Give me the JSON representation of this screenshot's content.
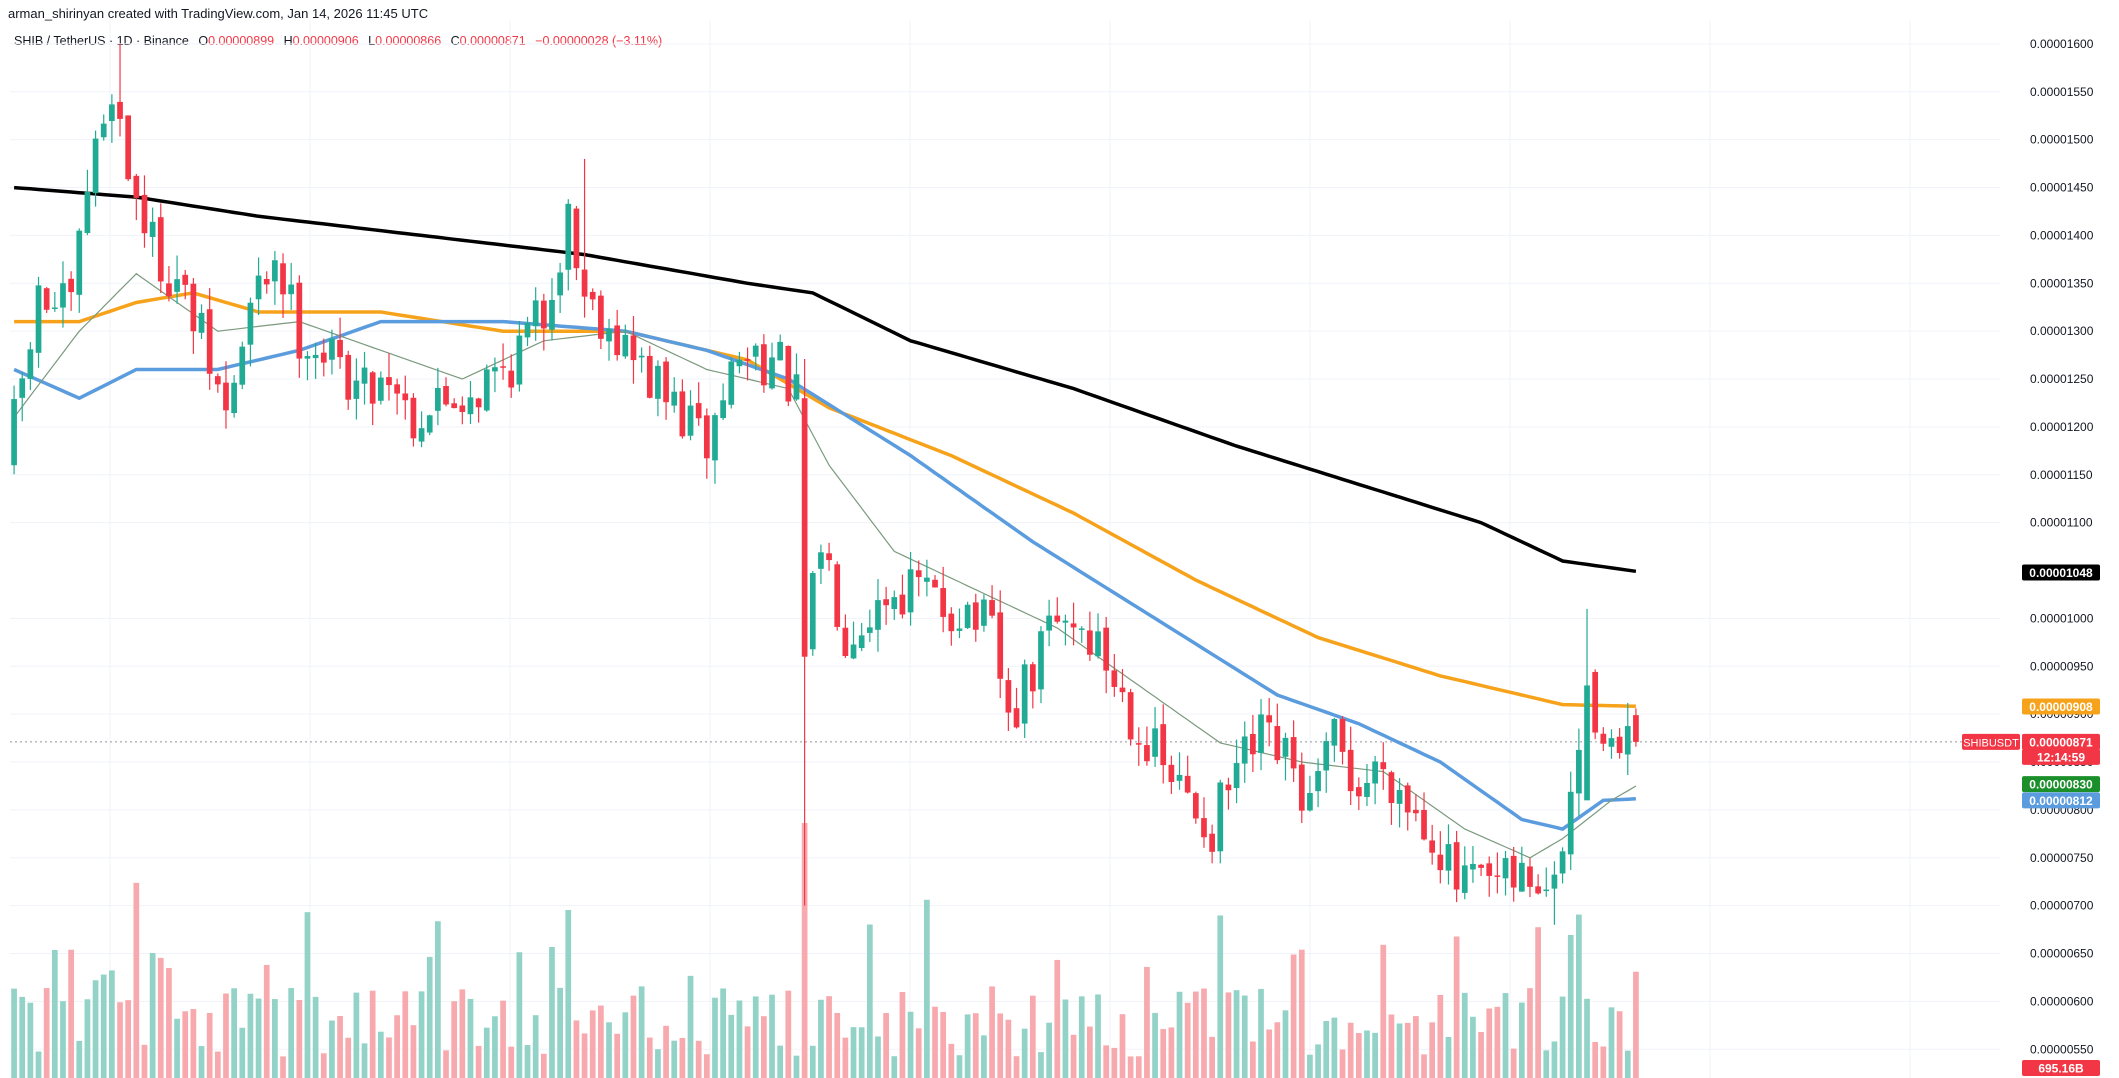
{
  "header": {
    "credit": "arman_shirinyan created with TradingView.com, Jan 14, 2026 11:45 UTC",
    "symbol_line": "SHIB / TetherUS · 1D · Binance",
    "open_label": "O",
    "open": "0.00000899",
    "high_label": "H",
    "high": "0.00000906",
    "low_label": "L",
    "low": "0.00000866",
    "close_label": "C",
    "close": "0.00000871",
    "change": "−0.00000028 (−3.11%)"
  },
  "colors": {
    "up": "#22ab94",
    "down": "#f23645",
    "vol_up": "#92d2c7",
    "vol_down": "#f7a9ae",
    "ma200": "#000000",
    "ma100": "#f7a21b",
    "ma50": "#5b9cde",
    "ma20": "#7b9a7e"
  },
  "price_labels": {
    "ma200": "0.00001048",
    "ma100": "0.00000908",
    "ticker": "SHIBUSDT",
    "last": "0.00000871",
    "countdown": "12:14:59",
    "ma20": "0.00000830",
    "ma50": "0.00000812",
    "volume": "695.16B"
  },
  "chart_data": {
    "type": "candlestick",
    "title": "SHIB / TetherUS · 1D · Binance",
    "y_axis": {
      "position": "right",
      "ylim": [
        5.2e-06,
        1.625e-05
      ],
      "ticks": [
        "0.00001600",
        "0.00001550",
        "0.00001500",
        "0.00001450",
        "0.00001400",
        "0.00001350",
        "0.00001300",
        "0.00001250",
        "0.00001200",
        "0.00001150",
        "0.00001100",
        "0.00001000",
        "0.00000950",
        "0.00000900",
        "0.00000850",
        "0.00000800",
        "0.00000750",
        "0.00000700",
        "0.00000650",
        "0.00000600",
        "0.00000550"
      ]
    },
    "grid": true,
    "candles_approx": 200,
    "key_points": [
      {
        "label": "start",
        "close": 1.16e-05
      },
      {
        "label": "early high",
        "high": 1.6e-05
      },
      {
        "label": "mid spike high",
        "high": 1.48e-05
      },
      {
        "label": "crash wick low",
        "low": 7e-06
      },
      {
        "label": "low",
        "low": 6.8e-06
      },
      {
        "label": "recent spike high",
        "high": 1.01e-05
      },
      {
        "label": "last",
        "open": 8.99e-06,
        "high": 9.06e-06,
        "low": 8.66e-06,
        "close": 8.71e-06
      }
    ],
    "close_path": [
      [
        0,
        1.16e-05
      ],
      [
        4,
        1.33e-05
      ],
      [
        8,
        1.32e-05
      ],
      [
        10,
        1.45e-05
      ],
      [
        13,
        1.56e-05
      ],
      [
        15,
        1.47e-05
      ],
      [
        18,
        1.39e-05
      ],
      [
        21,
        1.35e-05
      ],
      [
        24,
        1.29e-05
      ],
      [
        27,
        1.21e-05
      ],
      [
        30,
        1.32e-05
      ],
      [
        33,
        1.38e-05
      ],
      [
        36,
        1.3e-05
      ],
      [
        40,
        1.27e-05
      ],
      [
        44,
        1.24e-05
      ],
      [
        47,
        1.26e-05
      ],
      [
        50,
        1.21e-05
      ],
      [
        54,
        1.23e-05
      ],
      [
        58,
        1.24e-05
      ],
      [
        62,
        1.27e-05
      ],
      [
        66,
        1.32e-05
      ],
      [
        69,
        1.42e-05
      ],
      [
        71,
        1.34e-05
      ],
      [
        74,
        1.31e-05
      ],
      [
        77,
        1.27e-05
      ],
      [
        80,
        1.24e-05
      ],
      [
        83,
        1.21e-05
      ],
      [
        86,
        1.18e-05
      ],
      [
        89,
        1.26e-05
      ],
      [
        92,
        1.28e-05
      ],
      [
        95,
        1.26e-05
      ],
      [
        97,
        1.23e-05
      ],
      [
        98,
        9.6e-06
      ],
      [
        100,
        1.08e-05
      ],
      [
        103,
        9.9e-06
      ],
      [
        106,
        1.01e-05
      ],
      [
        109,
        1.03e-05
      ],
      [
        112,
        1.03e-05
      ],
      [
        115,
        1.01e-05
      ],
      [
        118,
        1.01e-05
      ],
      [
        121,
        9.8e-06
      ],
      [
        123,
        8.9e-06
      ],
      [
        126,
        9.4e-06
      ],
      [
        128,
        9.9e-06
      ],
      [
        131,
        1e-05
      ],
      [
        134,
        9.7e-06
      ],
      [
        137,
        9.2e-06
      ],
      [
        140,
        8.7e-06
      ],
      [
        143,
        8.3e-06
      ],
      [
        146,
        8e-06
      ],
      [
        148,
        7.8e-06
      ],
      [
        151,
        8.4e-06
      ],
      [
        154,
        8.7e-06
      ],
      [
        157,
        8.5e-06
      ],
      [
        160,
        8e-06
      ],
      [
        163,
        8.7e-06
      ],
      [
        166,
        8.2e-06
      ],
      [
        169,
        8.5e-06
      ],
      [
        172,
        8.1e-06
      ],
      [
        175,
        7.8e-06
      ],
      [
        178,
        7.2e-06
      ],
      [
        181,
        7.2e-06
      ],
      [
        184,
        7.2e-06
      ],
      [
        187,
        7.3e-06
      ],
      [
        190,
        7.1e-06
      ],
      [
        192,
        8.1e-06
      ],
      [
        194,
        9.2e-06
      ],
      [
        196,
        8.9e-06
      ],
      [
        198,
        8.5e-06
      ],
      [
        200,
        8.71e-06
      ]
    ],
    "series": [
      {
        "name": "",
        "kind": "MA200",
        "color": "#000000",
        "last": 1.048e-05
      },
      {
        "name": "",
        "kind": "MA100",
        "color": "#f7a21b",
        "last": 9.08e-06
      },
      {
        "name": "",
        "kind": "MA50",
        "color": "#5b9cde",
        "last": 8.12e-06
      },
      {
        "name": "",
        "kind": "MA20",
        "color": "#7b9a7e",
        "last": 8.3e-06
      }
    ],
    "volume_last": "695.16B"
  }
}
